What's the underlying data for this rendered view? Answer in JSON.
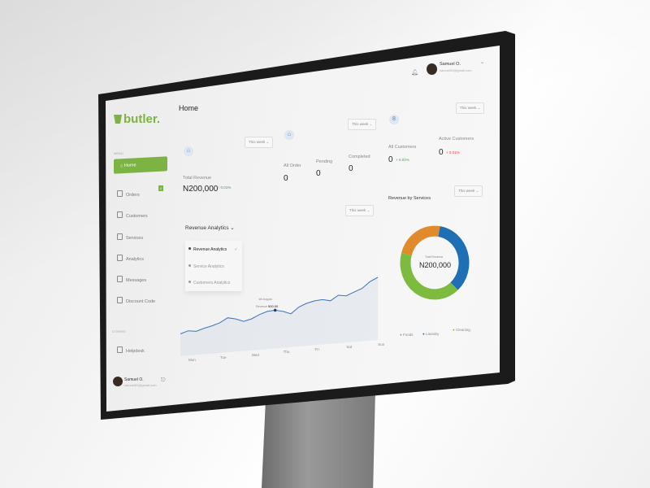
{
  "brand": {
    "name": "butler."
  },
  "header": {
    "title": "Home",
    "user_name": "Samuel O.",
    "user_email": "samuel03@gmail.com"
  },
  "sidebar": {
    "section_main": "MENU",
    "items": [
      {
        "label": "Home",
        "icon": "home-icon",
        "active": true
      },
      {
        "label": "Orders",
        "icon": "bag-icon",
        "badge": "2"
      },
      {
        "label": "Customers",
        "icon": "users-icon"
      },
      {
        "label": "Services",
        "icon": "clipboard-icon"
      },
      {
        "label": "Analytics",
        "icon": "chart-icon"
      },
      {
        "label": "Messages",
        "icon": "message-icon"
      },
      {
        "label": "Discount Code",
        "icon": "ticket-icon"
      }
    ],
    "section_other": "OTHERS",
    "other_items": [
      {
        "label": "Helpdesk",
        "icon": "help-icon"
      }
    ],
    "user_name": "Samuel O.",
    "user_email": "samuel03@gmail.com"
  },
  "cards": {
    "revenue": {
      "period": "This week",
      "label": "Total Revenue",
      "value": "N200,000",
      "change": "↑ 0.01%"
    },
    "orders": {
      "period": "This week",
      "all_label": "All Order",
      "all_value": "0",
      "pending_label": "Pending",
      "pending_value": "0",
      "completed_label": "Completed",
      "completed_value": "0"
    },
    "customers": {
      "period": "This week",
      "all_label": "All Customers",
      "all_value": "0",
      "all_change": "+ 0.01%",
      "active_label": "Active Customers",
      "active_value": "0",
      "active_change": "+ 0.01%",
      "positive_color": "#43a047",
      "negative_color": "#e53950"
    }
  },
  "analytics": {
    "title": "Revenue Analytics",
    "period": "This week",
    "menu": [
      {
        "label": "Revenue Analytics",
        "selected": true
      },
      {
        "label": "Service Analytics"
      },
      {
        "label": "Customers Analytics"
      }
    ],
    "tooltip": {
      "date": "4th August",
      "label": "Revenue",
      "value": "500.00"
    }
  },
  "services": {
    "title": "Revenue by Services",
    "period": "This week",
    "center_label": "Total Revenue",
    "center_value": "N200,000"
  },
  "chart_data": [
    {
      "type": "line",
      "categories": [
        "Mon",
        "Tue",
        "Wed",
        "Thu",
        "Fri",
        "Sat",
        "Sun"
      ],
      "x": [
        0,
        0.25,
        0.5,
        0.75,
        1,
        1.25,
        1.5,
        1.75,
        2,
        2.25,
        2.5,
        2.75,
        3,
        3.25,
        3.5,
        3.75,
        4,
        4.25,
        4.5,
        4.75,
        5,
        5.25,
        5.5,
        5.75,
        6,
        6.25
      ],
      "values": [
        10,
        14,
        12,
        16,
        19,
        23,
        30,
        27,
        22,
        25,
        31,
        35,
        36,
        33,
        28,
        38,
        43,
        46,
        47,
        44,
        52,
        50,
        55,
        60,
        70,
        76
      ],
      "color": "#3b73b9",
      "highlight_index": 12
    },
    {
      "type": "pie",
      "donut": true,
      "categories": [
        "Laundry",
        "Cleaning",
        "Foods"
      ],
      "values": [
        36,
        41,
        23
      ],
      "colors": [
        "#1f6fb5",
        "#7cbb3d",
        "#e08a2c"
      ],
      "legend": "bottom"
    }
  ]
}
